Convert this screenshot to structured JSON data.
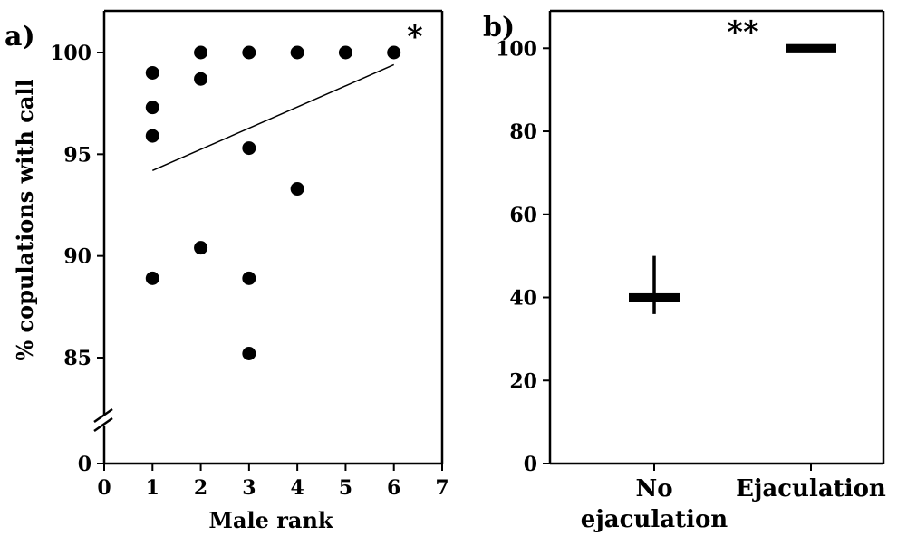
{
  "chart_data": [
    {
      "panel_label": "a)",
      "type": "scatter",
      "xlabel": "Male rank",
      "ylabel": "% copulations with call",
      "x_ticks": [
        "0",
        "1",
        "2",
        "3",
        "4",
        "5",
        "6",
        "7"
      ],
      "y_ticks": [
        "0",
        "85",
        "90",
        "95",
        "100"
      ],
      "xlim": [
        0,
        7
      ],
      "ylim_main": [
        82.5,
        101.7
      ],
      "axis_break": true,
      "points": [
        {
          "x": 1,
          "y": 99.0
        },
        {
          "x": 1,
          "y": 97.3
        },
        {
          "x": 1,
          "y": 95.9
        },
        {
          "x": 1,
          "y": 88.9
        },
        {
          "x": 2,
          "y": 100.0
        },
        {
          "x": 2,
          "y": 98.7
        },
        {
          "x": 2,
          "y": 90.4
        },
        {
          "x": 3,
          "y": 100.0
        },
        {
          "x": 3,
          "y": 95.3
        },
        {
          "x": 3,
          "y": 88.9
        },
        {
          "x": 3,
          "y": 85.2
        },
        {
          "x": 4,
          "y": 100.0
        },
        {
          "x": 4,
          "y": 93.3
        },
        {
          "x": 5,
          "y": 100.0
        },
        {
          "x": 6,
          "y": 100.0
        }
      ],
      "trend_line": {
        "x": [
          1,
          6
        ],
        "y": [
          94.2,
          99.4
        ]
      },
      "significance": "*"
    },
    {
      "panel_label": "b)",
      "type": "box",
      "categories": [
        "No ejaculation",
        "Ejaculation"
      ],
      "category_lines": [
        [
          "No",
          "ejaculation"
        ],
        [
          "Ejaculation"
        ]
      ],
      "y_ticks": [
        "0",
        "20",
        "40",
        "60",
        "80",
        "100"
      ],
      "ylim": [
        0,
        109
      ],
      "boxes": [
        {
          "median_low": 39,
          "median_high": 41,
          "whisker_low": 36,
          "whisker_high": 50
        },
        {
          "median_low": 99,
          "median_high": 101,
          "whisker_low": 100,
          "whisker_high": 100
        }
      ],
      "significance": "**"
    }
  ],
  "colors": {
    "ink": "#000000",
    "background": "#ffffff"
  }
}
